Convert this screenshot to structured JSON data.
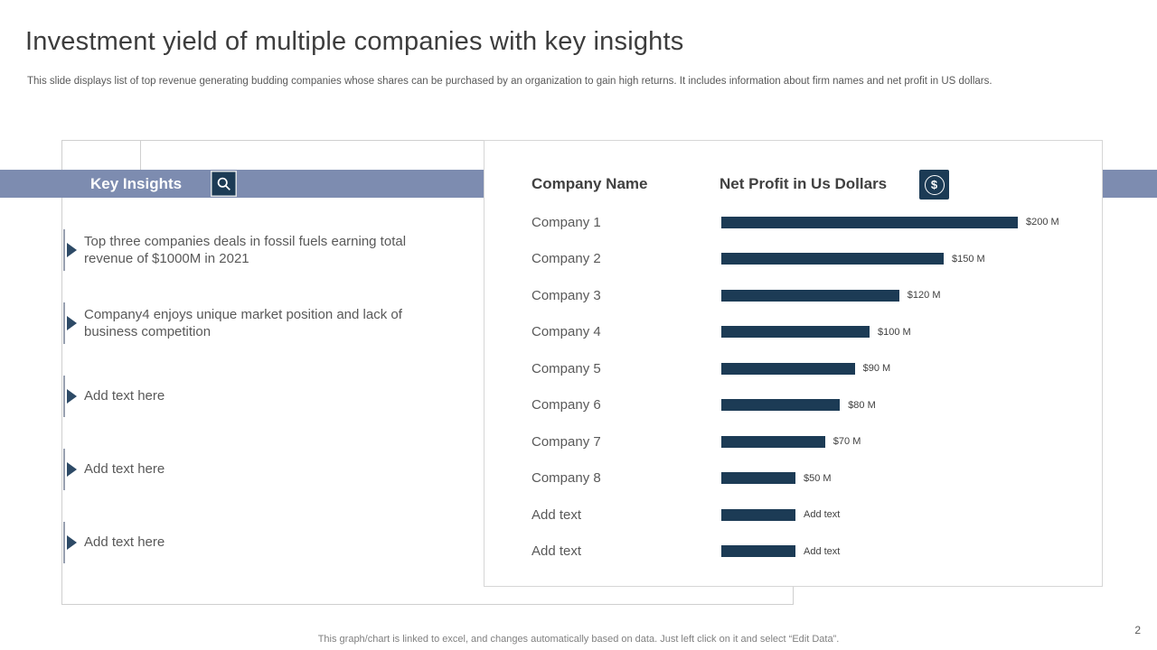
{
  "slide": {
    "title": "Investment yield of multiple companies with key insights",
    "subtitle": "This slide displays list of top revenue generating budding companies whose shares can be purchased by an organization to gain high returns. It includes information about firm names and net profit in US dollars.",
    "footer": "This graph/chart is linked to excel, and changes automatically based on data. Just left click on it and select “Edit Data”.",
    "page_number": "2"
  },
  "key_insights": {
    "header": "Key Insights",
    "icon": "magnifier-icon",
    "items": [
      "Top three companies deals in fossil fuels earning total revenue of $1000M in 2021",
      "Company4 enjoys unique market position and lack of business competition",
      "Add text here",
      "Add text here",
      "Add text here"
    ]
  },
  "chart": {
    "company_header": "Company Name",
    "profit_header": "Net Profit in Us Dollars",
    "icon": "dollar-icon"
  },
  "chart_data": {
    "type": "bar",
    "orientation": "horizontal",
    "title": "Net Profit in Us Dollars",
    "categories": [
      "Company 1",
      "Company 2",
      "Company 3",
      "Company 4",
      "Company 5",
      "Company 6",
      "Company 7",
      "Company 8",
      "Add text",
      "Add text"
    ],
    "values": [
      200,
      150,
      120,
      100,
      90,
      80,
      70,
      50,
      50,
      50
    ],
    "value_labels": [
      "$200 M",
      "$150 M",
      "$120 M",
      "$100 M",
      "$90 M",
      "$80 M",
      "$70 M",
      "$50 M",
      "Add text",
      "Add text"
    ],
    "xlim": [
      0,
      200
    ],
    "bar_color": "#1c3b55",
    "legend": false,
    "grid": false
  },
  "colors": {
    "accent_navy": "#1c3b55",
    "band_blue": "#7d8cb0",
    "title_gray": "#3d3d3d",
    "body_gray": "#595959"
  }
}
